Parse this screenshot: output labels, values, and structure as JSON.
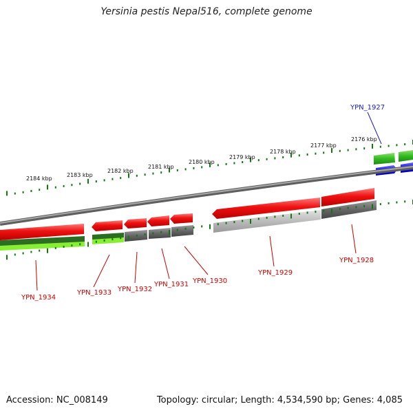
{
  "title": "Yersinia pestis Nepal516, complete genome",
  "footer": {
    "accession": "Accession: NC_008149",
    "summary": "Topology: circular; Length: 4,534,590 bp; Genes: 4,085"
  },
  "colors": {
    "cds_forward": "#ee1111",
    "cds_reverse": "#1111ee",
    "gene_label": "#cc0000",
    "gene_label_blue": "#1a1acc",
    "backbone": "#888888",
    "tick": "#117711",
    "gc_dark": "#226622",
    "gc_light": "#99ff33"
  },
  "ruler": {
    "ticks": [
      {
        "label": "2184 kbp"
      },
      {
        "label": "2183 kbp"
      },
      {
        "label": "2182 kbp"
      },
      {
        "label": "2181 kbp"
      },
      {
        "label": "2180 kbp"
      },
      {
        "label": "2179 kbp"
      },
      {
        "label": "2178 kbp"
      },
      {
        "label": "2177 kbp"
      },
      {
        "label": "2176 kbp"
      }
    ]
  },
  "genes": [
    {
      "label": "YPN_1927"
    },
    {
      "label": "YPN_1928"
    },
    {
      "label": "YPN_1929"
    },
    {
      "label": "YPN_1930"
    },
    {
      "label": "YPN_1931"
    },
    {
      "label": "YPN_1932"
    },
    {
      "label": "YPN_1933"
    },
    {
      "label": "YPN_1934"
    }
  ]
}
